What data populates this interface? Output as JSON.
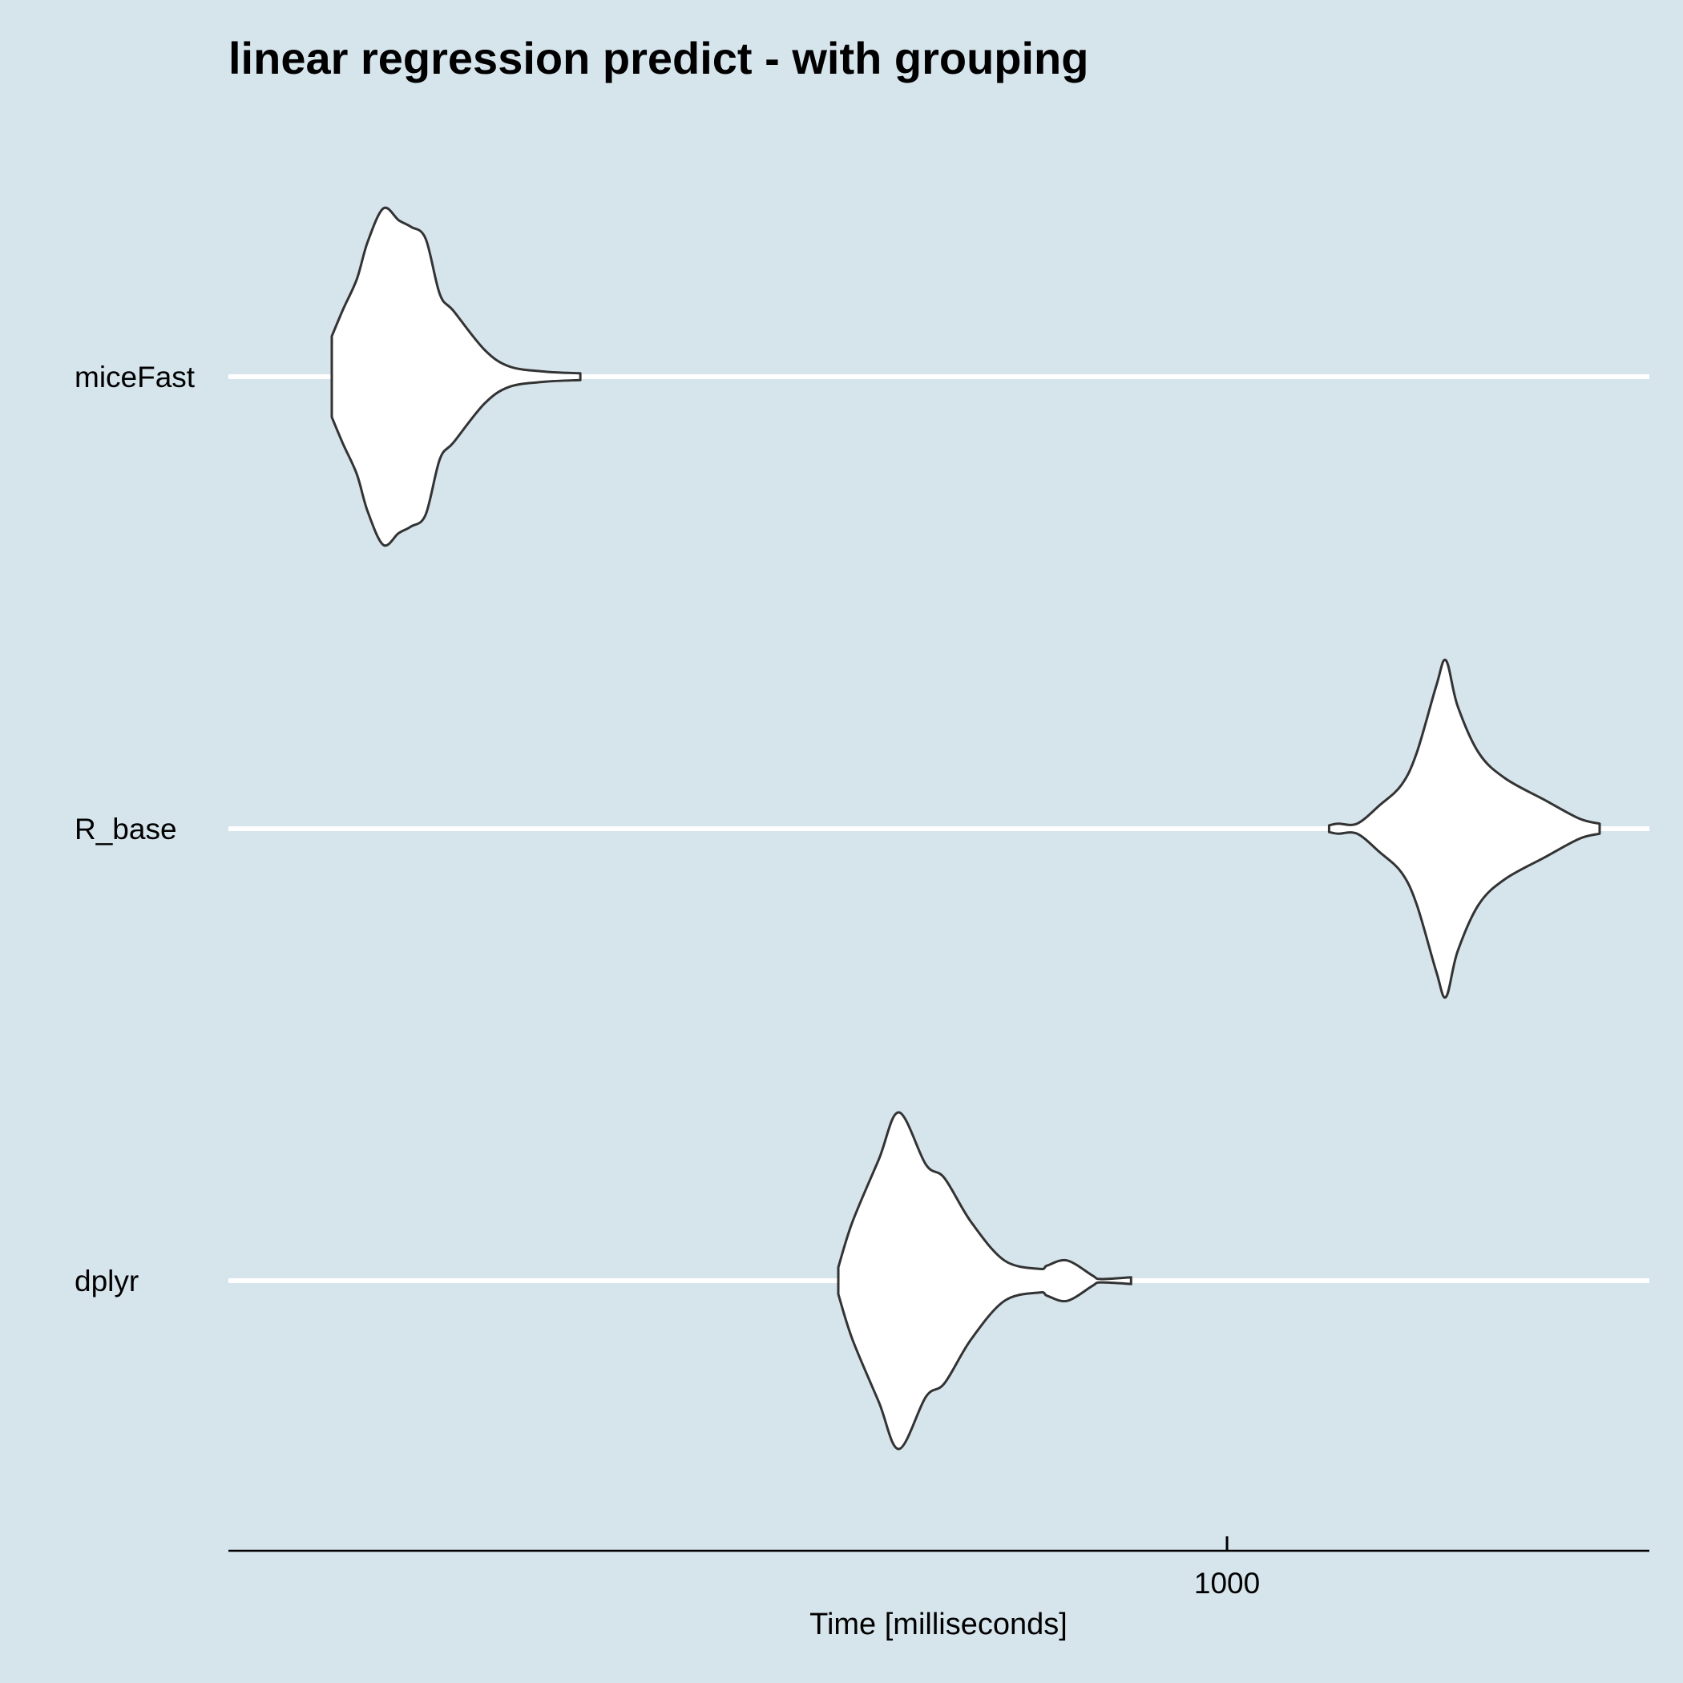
{
  "chart_data": {
    "type": "violin",
    "title": "linear regression predict - with grouping",
    "xlabel": "Time [milliseconds]",
    "ylabel": "",
    "x_scale": "log10",
    "xlim": [
      155,
      2200
    ],
    "x_ticks": [
      1000
    ],
    "x_tick_labels": [
      "1000"
    ],
    "grid": "horizontal",
    "categories": [
      "miceFast",
      "R_base",
      "dplyr"
    ],
    "series": [
      {
        "name": "miceFast",
        "min": 188,
        "max": 299,
        "density": [
          [
            188,
            0.24
          ],
          [
            192,
            0.4
          ],
          [
            197,
            0.58
          ],
          [
            201,
            0.8
          ],
          [
            207,
            1.0
          ],
          [
            213,
            0.93
          ],
          [
            218,
            0.89
          ],
          [
            224,
            0.82
          ],
          [
            230,
            0.49
          ],
          [
            236,
            0.39
          ],
          [
            250,
            0.16
          ],
          [
            262,
            0.06
          ],
          [
            280,
            0.03
          ],
          [
            299,
            0.02
          ]
        ]
      },
      {
        "name": "R_base",
        "min": 1210,
        "max": 2005,
        "density": [
          [
            1210,
            0.02
          ],
          [
            1230,
            0.03
          ],
          [
            1275,
            0.03
          ],
          [
            1330,
            0.14
          ],
          [
            1385,
            0.26
          ],
          [
            1425,
            0.45
          ],
          [
            1478,
            0.85
          ],
          [
            1505,
            1.0
          ],
          [
            1538,
            0.73
          ],
          [
            1600,
            0.45
          ],
          [
            1680,
            0.3
          ],
          [
            1810,
            0.17
          ],
          [
            1930,
            0.06
          ],
          [
            2005,
            0.03
          ]
        ]
      },
      {
        "name": "dplyr",
        "min": 484,
        "max": 836,
        "density": [
          [
            484,
            0.08
          ],
          [
            497,
            0.35
          ],
          [
            522,
            0.72
          ],
          [
            542,
            1.0
          ],
          [
            570,
            0.69
          ],
          [
            590,
            0.61
          ],
          [
            620,
            0.35
          ],
          [
            660,
            0.12
          ],
          [
            705,
            0.07
          ],
          [
            715,
            0.09
          ],
          [
            742,
            0.12
          ],
          [
            778,
            0.03
          ],
          [
            790,
            0.01
          ],
          [
            836,
            0.02
          ]
        ]
      }
    ]
  }
}
